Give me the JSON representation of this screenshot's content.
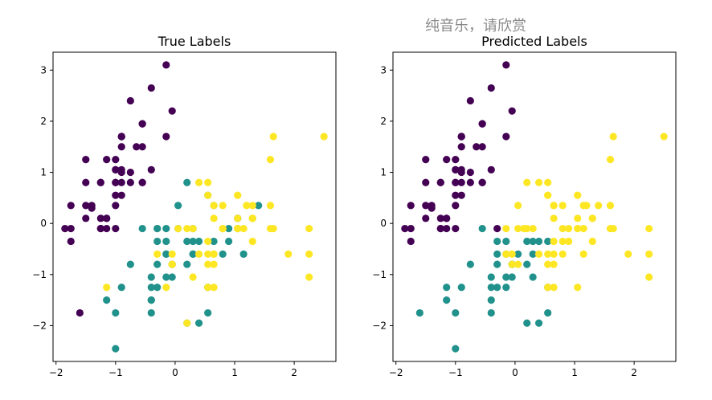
{
  "overlay_title": "纯音乐，请欣赏",
  "colors": {
    "setosa": "#440154",
    "versicolor": "#21918c",
    "virginica": "#fde725",
    "axis": "#000000"
  },
  "chart_data": [
    {
      "type": "scatter",
      "title": "True Labels",
      "xlabel": "",
      "ylabel": "",
      "xlim": [
        -2.05,
        2.7
      ],
      "ylim": [
        -2.7,
        3.35
      ],
      "xticks": [
        -2,
        -1,
        0,
        1,
        2
      ],
      "yticks": [
        -2,
        -1,
        0,
        1,
        2,
        3
      ],
      "grid": false,
      "points": [
        [
          -0.9,
          1.0,
          0
        ],
        [
          -1.15,
          -0.1,
          0
        ],
        [
          -1.4,
          0.3,
          0
        ],
        [
          -1.5,
          0.1,
          0
        ],
        [
          -1.0,
          1.25,
          0
        ],
        [
          -0.55,
          1.95,
          0
        ],
        [
          -1.5,
          0.8,
          0
        ],
        [
          -1.0,
          0.8,
          0
        ],
        [
          -1.75,
          -0.35,
          0
        ],
        [
          -1.15,
          0.1,
          0
        ],
        [
          -0.55,
          1.5,
          0
        ],
        [
          -1.25,
          0.8,
          0
        ],
        [
          -1.25,
          -0.1,
          0
        ],
        [
          -1.85,
          -0.1,
          0
        ],
        [
          -0.05,
          2.2,
          0
        ],
        [
          -0.15,
          3.1,
          0
        ],
        [
          -0.55,
          1.95,
          0
        ],
        [
          -0.9,
          1.05,
          0
        ],
        [
          -0.15,
          1.7,
          0
        ],
        [
          -0.9,
          1.7,
          0
        ],
        [
          -0.55,
          0.8,
          0
        ],
        [
          -0.9,
          1.5,
          0
        ],
        [
          -1.5,
          1.25,
          0
        ],
        [
          -0.9,
          0.55,
          0
        ],
        [
          -1.25,
          0.8,
          0
        ],
        [
          -1.0,
          -0.1,
          0
        ],
        [
          -1.0,
          0.8,
          0
        ],
        [
          -0.75,
          1.0,
          0
        ],
        [
          -0.75,
          0.8,
          0
        ],
        [
          -1.4,
          0.35,
          0
        ],
        [
          -1.25,
          0.1,
          0
        ],
        [
          -0.55,
          0.8,
          0
        ],
        [
          -0.75,
          2.4,
          0
        ],
        [
          -0.4,
          2.65,
          0
        ],
        [
          -1.15,
          0.1,
          0
        ],
        [
          -1.0,
          0.35,
          0
        ],
        [
          -0.4,
          1.05,
          0
        ],
        [
          -1.15,
          1.25,
          0
        ],
        [
          -1.75,
          -0.1,
          0
        ],
        [
          -0.9,
          0.8,
          0
        ],
        [
          -1.0,
          1.05,
          0
        ],
        [
          -1.6,
          -1.75,
          0
        ],
        [
          -1.75,
          0.35,
          0
        ],
        [
          -1.0,
          1.05,
          0
        ],
        [
          -0.9,
          1.7,
          0
        ],
        [
          -1.25,
          -0.1,
          0
        ],
        [
          -0.9,
          1.7,
          0
        ],
        [
          -1.5,
          0.35,
          0
        ],
        [
          -0.65,
          1.5,
          0
        ],
        [
          -1.0,
          0.55,
          0
        ],
        [
          1.4,
          0.35,
          1
        ],
        [
          0.65,
          0.35,
          1
        ],
        [
          1.3,
          0.1,
          1
        ],
        [
          -0.4,
          -1.75,
          1
        ],
        [
          0.8,
          -0.6,
          1
        ],
        [
          -0.15,
          -0.6,
          1
        ],
        [
          0.55,
          0.55,
          1
        ],
        [
          -1.15,
          -1.5,
          1
        ],
        [
          0.9,
          -0.35,
          1
        ],
        [
          -0.75,
          -0.8,
          1
        ],
        [
          -1.0,
          -2.45,
          1
        ],
        [
          0.05,
          -0.1,
          1
        ],
        [
          0.2,
          -1.95,
          1
        ],
        [
          0.3,
          -0.35,
          1
        ],
        [
          -0.3,
          -0.35,
          1
        ],
        [
          1.05,
          0.1,
          1
        ],
        [
          -0.3,
          -0.1,
          1
        ],
        [
          -0.05,
          -0.8,
          1
        ],
        [
          0.4,
          -1.95,
          1
        ],
        [
          -0.3,
          -1.25,
          1
        ],
        [
          0.05,
          0.35,
          1
        ],
        [
          0.3,
          -0.6,
          1
        ],
        [
          0.55,
          -1.25,
          1
        ],
        [
          0.3,
          -0.6,
          1
        ],
        [
          0.65,
          -0.35,
          1
        ],
        [
          0.9,
          -0.1,
          1
        ],
        [
          1.15,
          -0.6,
          1
        ],
        [
          1.05,
          -0.1,
          1
        ],
        [
          0.2,
          -0.35,
          1
        ],
        [
          -0.15,
          -1.05,
          1
        ],
        [
          -0.4,
          -1.5,
          1
        ],
        [
          -0.4,
          -1.5,
          1
        ],
        [
          -0.05,
          -0.8,
          1
        ],
        [
          0.2,
          -0.8,
          1
        ],
        [
          -0.55,
          -0.1,
          1
        ],
        [
          0.2,
          0.8,
          1
        ],
        [
          1.05,
          0.1,
          1
        ],
        [
          0.55,
          -1.75,
          1
        ],
        [
          -0.3,
          -0.1,
          1
        ],
        [
          -0.4,
          -1.25,
          1
        ],
        [
          -0.4,
          -1.05,
          1
        ],
        [
          0.3,
          -0.1,
          1
        ],
        [
          -0.05,
          -1.05,
          1
        ],
        [
          -1.0,
          -1.75,
          1
        ],
        [
          -0.3,
          -0.8,
          1
        ],
        [
          -0.15,
          -0.1,
          1
        ],
        [
          -0.15,
          -0.35,
          1
        ],
        [
          0.4,
          -0.35,
          1
        ],
        [
          -0.9,
          -1.25,
          1
        ],
        [
          -0.15,
          -0.6,
          1
        ],
        [
          0.55,
          0.55,
          2
        ],
        [
          -0.05,
          -0.8,
          2
        ],
        [
          1.15,
          -0.1,
          2
        ],
        [
          0.55,
          -0.35,
          2
        ],
        [
          0.8,
          -0.1,
          2
        ],
        [
          1.65,
          -0.1,
          2
        ],
        [
          -1.15,
          -1.25,
          2
        ],
        [
          1.3,
          -0.35,
          2
        ],
        [
          0.65,
          -1.25,
          2
        ],
        [
          1.6,
          1.25,
          2
        ],
        [
          0.8,
          0.35,
          2
        ],
        [
          0.65,
          -0.8,
          2
        ],
        [
          1.05,
          -0.1,
          2
        ],
        [
          -0.15,
          -1.25,
          2
        ],
        [
          -0.05,
          -0.6,
          2
        ],
        [
          0.65,
          0.35,
          2
        ],
        [
          0.8,
          -0.1,
          2
        ],
        [
          1.65,
          1.7,
          2
        ],
        [
          2.25,
          -1.05,
          2
        ],
        [
          0.2,
          -1.95,
          2
        ],
        [
          1.3,
          0.35,
          2
        ],
        [
          -0.3,
          -0.6,
          2
        ],
        [
          2.25,
          -0.6,
          2
        ],
        [
          0.55,
          -0.8,
          2
        ],
        [
          1.05,
          0.55,
          2
        ],
        [
          1.6,
          0.35,
          2
        ],
        [
          0.4,
          -0.6,
          2
        ],
        [
          0.3,
          -0.1,
          2
        ],
        [
          0.65,
          -0.6,
          2
        ],
        [
          1.6,
          -0.1,
          2
        ],
        [
          1.9,
          -0.6,
          2
        ],
        [
          2.5,
          1.7,
          2
        ],
        [
          0.65,
          -0.6,
          2
        ],
        [
          0.55,
          -0.6,
          2
        ],
        [
          0.3,
          -1.05,
          2
        ],
        [
          2.25,
          -0.1,
          2
        ],
        [
          0.55,
          0.8,
          2
        ],
        [
          0.65,
          0.1,
          2
        ],
        [
          0.2,
          -0.1,
          2
        ],
        [
          1.3,
          0.1,
          2
        ],
        [
          1.05,
          0.1,
          2
        ],
        [
          1.3,
          0.1,
          2
        ],
        [
          -0.05,
          -0.8,
          2
        ],
        [
          1.2,
          0.35,
          2
        ],
        [
          1.05,
          0.55,
          2
        ],
        [
          1.05,
          -0.1,
          2
        ],
        [
          0.55,
          -1.25,
          2
        ],
        [
          0.8,
          -0.1,
          2
        ],
        [
          0.4,
          0.8,
          2
        ],
        [
          0.05,
          -0.1,
          2
        ]
      ]
    },
    {
      "type": "scatter",
      "title": "Predicted Labels",
      "xlabel": "",
      "ylabel": "",
      "xlim": [
        -2.05,
        2.7
      ],
      "ylim": [
        -2.7,
        3.35
      ],
      "xticks": [
        -2,
        -1,
        0,
        1,
        2
      ],
      "yticks": [
        -2,
        -1,
        0,
        1,
        2,
        3
      ],
      "grid": false,
      "points": [
        [
          -0.9,
          1.0,
          0
        ],
        [
          -1.15,
          -0.1,
          0
        ],
        [
          -1.4,
          0.3,
          0
        ],
        [
          -1.5,
          0.1,
          0
        ],
        [
          -1.0,
          1.25,
          0
        ],
        [
          -0.55,
          1.95,
          0
        ],
        [
          -1.5,
          0.8,
          0
        ],
        [
          -1.0,
          0.8,
          0
        ],
        [
          -1.75,
          -0.35,
          0
        ],
        [
          -1.15,
          0.1,
          0
        ],
        [
          -0.55,
          1.5,
          0
        ],
        [
          -1.25,
          0.8,
          0
        ],
        [
          -1.25,
          -0.1,
          0
        ],
        [
          -1.85,
          -0.1,
          0
        ],
        [
          -0.05,
          2.2,
          0
        ],
        [
          -0.15,
          3.1,
          0
        ],
        [
          -0.55,
          1.95,
          0
        ],
        [
          -0.9,
          1.05,
          0
        ],
        [
          -0.15,
          1.7,
          0
        ],
        [
          -0.9,
          1.7,
          0
        ],
        [
          -0.55,
          0.8,
          0
        ],
        [
          -0.9,
          1.5,
          0
        ],
        [
          -1.5,
          1.25,
          0
        ],
        [
          -0.9,
          0.55,
          0
        ],
        [
          -1.25,
          0.8,
          0
        ],
        [
          -1.0,
          -0.1,
          0
        ],
        [
          -1.0,
          0.8,
          0
        ],
        [
          -0.75,
          1.0,
          0
        ],
        [
          -0.75,
          0.8,
          0
        ],
        [
          -1.4,
          0.35,
          0
        ],
        [
          -1.25,
          0.1,
          0
        ],
        [
          -0.55,
          0.8,
          0
        ],
        [
          -0.75,
          2.4,
          0
        ],
        [
          -0.4,
          2.65,
          0
        ],
        [
          -1.15,
          0.1,
          0
        ],
        [
          -1.0,
          0.35,
          0
        ],
        [
          -0.4,
          1.05,
          0
        ],
        [
          -1.15,
          1.25,
          0
        ],
        [
          -1.75,
          -0.1,
          0
        ],
        [
          -0.9,
          0.8,
          0
        ],
        [
          -1.0,
          1.05,
          0
        ],
        [
          -1.75,
          0.35,
          0
        ],
        [
          -1.0,
          1.05,
          0
        ],
        [
          -0.9,
          1.7,
          0
        ],
        [
          -1.25,
          -0.1,
          0
        ],
        [
          -0.9,
          1.7,
          0
        ],
        [
          -1.5,
          0.35,
          0
        ],
        [
          -0.65,
          1.5,
          0
        ],
        [
          -1.0,
          0.55,
          0
        ],
        [
          -0.3,
          -0.1,
          0
        ],
        [
          -1.6,
          -1.75,
          1
        ],
        [
          -0.4,
          -1.75,
          1
        ],
        [
          -1.15,
          -1.5,
          1
        ],
        [
          -0.75,
          -0.8,
          1
        ],
        [
          -1.0,
          -2.45,
          1
        ],
        [
          0.2,
          -1.95,
          1
        ],
        [
          0.3,
          -0.35,
          1
        ],
        [
          -0.3,
          -0.35,
          1
        ],
        [
          -0.05,
          -0.8,
          1
        ],
        [
          0.4,
          -1.95,
          1
        ],
        [
          -0.3,
          -1.25,
          1
        ],
        [
          0.3,
          -0.6,
          1
        ],
        [
          0.55,
          -1.25,
          1
        ],
        [
          0.2,
          -0.35,
          1
        ],
        [
          -0.15,
          -1.05,
          1
        ],
        [
          -0.4,
          -1.5,
          1
        ],
        [
          -0.4,
          -1.25,
          1
        ],
        [
          -0.05,
          -0.8,
          1
        ],
        [
          0.2,
          -0.8,
          1
        ],
        [
          -0.55,
          -0.1,
          1
        ],
        [
          0.55,
          -1.75,
          1
        ],
        [
          -0.4,
          -1.05,
          1
        ],
        [
          -0.05,
          -1.05,
          1
        ],
        [
          -1.0,
          -1.75,
          1
        ],
        [
          -0.3,
          -0.8,
          1
        ],
        [
          -0.15,
          -0.35,
          1
        ],
        [
          0.4,
          -0.35,
          1
        ],
        [
          -0.9,
          -1.25,
          1
        ],
        [
          -0.15,
          -0.6,
          1
        ],
        [
          -1.15,
          -1.25,
          1
        ],
        [
          0.3,
          -1.05,
          1
        ],
        [
          -0.3,
          -0.6,
          1
        ],
        [
          0.55,
          -0.35,
          1
        ],
        [
          -0.15,
          -1.25,
          1
        ],
        [
          0.05,
          -0.6,
          1
        ],
        [
          1.4,
          0.35,
          2
        ],
        [
          0.65,
          0.35,
          2
        ],
        [
          1.3,
          0.1,
          2
        ],
        [
          0.8,
          -0.6,
          2
        ],
        [
          -0.15,
          -0.6,
          2
        ],
        [
          0.55,
          0.55,
          2
        ],
        [
          0.9,
          -0.35,
          2
        ],
        [
          0.05,
          -0.1,
          2
        ],
        [
          1.05,
          0.1,
          2
        ],
        [
          0.65,
          -0.35,
          2
        ],
        [
          0.9,
          -0.1,
          2
        ],
        [
          1.15,
          -0.6,
          2
        ],
        [
          1.05,
          -0.1,
          2
        ],
        [
          0.2,
          0.8,
          2
        ],
        [
          0.3,
          -0.1,
          2
        ],
        [
          -0.15,
          -0.1,
          2
        ],
        [
          0.05,
          0.35,
          2
        ],
        [
          0.55,
          0.55,
          2
        ],
        [
          1.15,
          -0.1,
          2
        ],
        [
          0.8,
          -0.1,
          2
        ],
        [
          1.65,
          -0.1,
          2
        ],
        [
          1.3,
          -0.35,
          2
        ],
        [
          0.65,
          -1.25,
          2
        ],
        [
          1.6,
          1.25,
          2
        ],
        [
          0.8,
          0.35,
          2
        ],
        [
          0.65,
          -0.8,
          2
        ],
        [
          -0.05,
          -0.6,
          2
        ],
        [
          0.65,
          0.35,
          2
        ],
        [
          1.65,
          1.7,
          2
        ],
        [
          2.25,
          -1.05,
          2
        ],
        [
          2.25,
          -0.6,
          2
        ],
        [
          0.55,
          -0.8,
          2
        ],
        [
          1.05,
          0.55,
          2
        ],
        [
          1.6,
          0.35,
          2
        ],
        [
          0.4,
          -0.6,
          2
        ],
        [
          0.65,
          -0.6,
          2
        ],
        [
          1.6,
          -0.1,
          2
        ],
        [
          1.9,
          -0.6,
          2
        ],
        [
          2.5,
          1.7,
          2
        ],
        [
          0.55,
          -0.6,
          2
        ],
        [
          2.25,
          -0.1,
          2
        ],
        [
          0.55,
          0.8,
          2
        ],
        [
          0.65,
          0.1,
          2
        ],
        [
          0.2,
          -0.1,
          2
        ],
        [
          1.3,
          0.1,
          2
        ],
        [
          -0.05,
          -0.8,
          2
        ],
        [
          1.2,
          0.35,
          2
        ],
        [
          1.05,
          0.55,
          2
        ],
        [
          0.55,
          -1.25,
          2
        ],
        [
          0.4,
          0.8,
          2
        ],
        [
          0.15,
          -0.1,
          2
        ],
        [
          1.05,
          -1.25,
          2
        ],
        [
          0.05,
          -0.8,
          2
        ],
        [
          0.8,
          -0.35,
          2
        ],
        [
          1.15,
          0.35,
          2
        ],
        [
          1.05,
          -0.1,
          2
        ]
      ]
    }
  ]
}
